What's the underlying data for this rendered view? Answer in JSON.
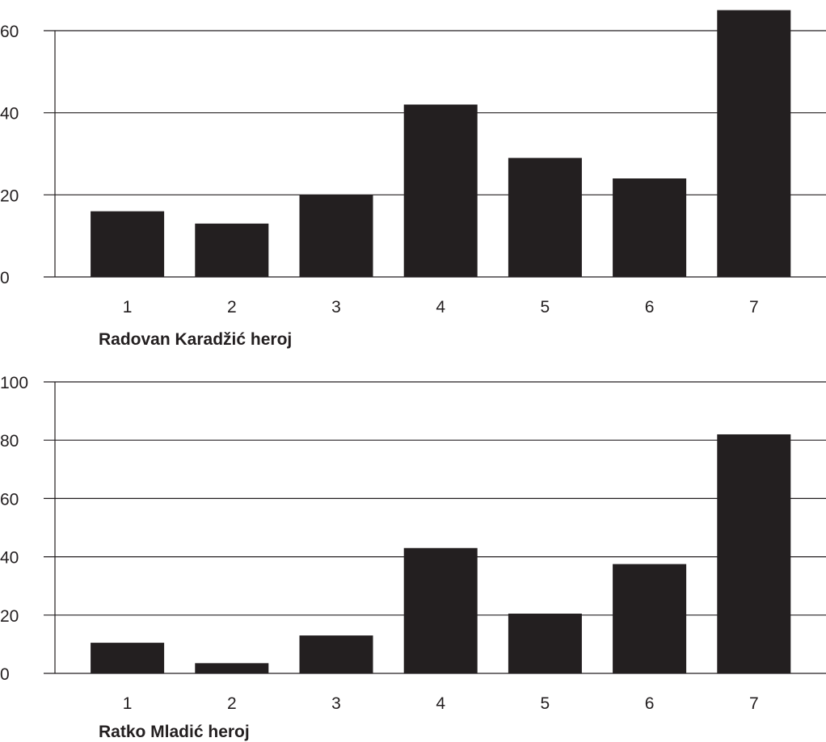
{
  "chart_data": [
    {
      "type": "bar",
      "caption": "Radovan Karadžić heroj",
      "categories": [
        "1",
        "2",
        "3",
        "4",
        "5",
        "6",
        "7"
      ],
      "values": [
        16,
        13,
        20,
        42,
        29,
        24,
        65
      ],
      "ylim": [
        0,
        60
      ],
      "yticks": [
        "0",
        "20",
        "40",
        "60"
      ],
      "grid": true,
      "bar_color": "#231f20"
    },
    {
      "type": "bar",
      "caption": "Ratko Mladić heroj",
      "categories": [
        "1",
        "2",
        "3",
        "4",
        "5",
        "6",
        "7"
      ],
      "values": [
        10.5,
        3.5,
        13,
        43,
        20.5,
        37.5,
        82
      ],
      "ylim": [
        0,
        100
      ],
      "yticks": [
        "0",
        "20",
        "40",
        "60",
        "80",
        "100"
      ],
      "grid": true,
      "bar_color": "#231f20"
    }
  ]
}
